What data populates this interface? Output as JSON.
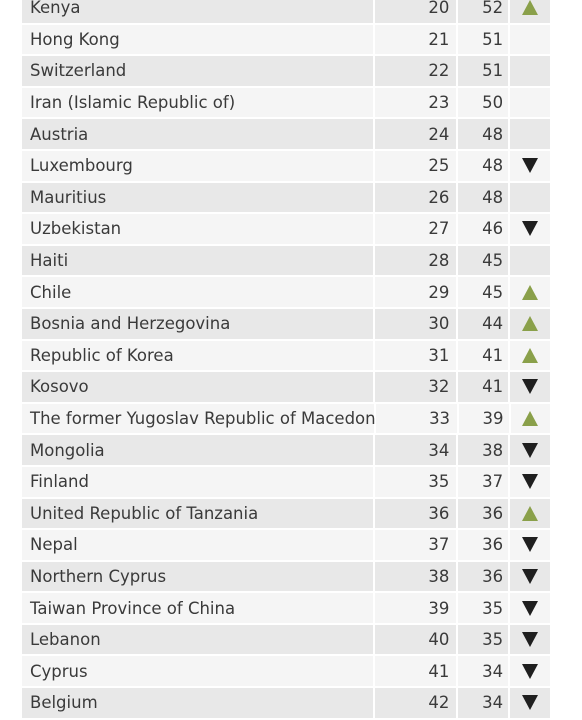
{
  "rows": [
    {
      "country": "Kenya",
      "rank": "20",
      "score": "52",
      "trend": "up"
    },
    {
      "country": "Hong Kong",
      "rank": "21",
      "score": "51",
      "trend": ""
    },
    {
      "country": "Switzerland",
      "rank": "22",
      "score": "51",
      "trend": ""
    },
    {
      "country": "Iran (Islamic Republic of)",
      "rank": "23",
      "score": "50",
      "trend": ""
    },
    {
      "country": "Austria",
      "rank": "24",
      "score": "48",
      "trend": ""
    },
    {
      "country": "Luxembourg",
      "rank": "25",
      "score": "48",
      "trend": "down"
    },
    {
      "country": "Mauritius",
      "rank": "26",
      "score": "48",
      "trend": ""
    },
    {
      "country": "Uzbekistan",
      "rank": "27",
      "score": "46",
      "trend": "down"
    },
    {
      "country": "Haiti",
      "rank": "28",
      "score": "45",
      "trend": ""
    },
    {
      "country": "Chile",
      "rank": "29",
      "score": "45",
      "trend": "up"
    },
    {
      "country": "Bosnia and Herzegovina",
      "rank": "30",
      "score": "44",
      "trend": "up"
    },
    {
      "country": "Republic of Korea",
      "rank": "31",
      "score": "41",
      "trend": "up"
    },
    {
      "country": "Kosovo",
      "rank": "32",
      "score": "41",
      "trend": "down"
    },
    {
      "country": "The former Yugoslav Republic of Macedonia",
      "rank": "33",
      "score": "39",
      "trend": "up"
    },
    {
      "country": "Mongolia",
      "rank": "34",
      "score": "38",
      "trend": "down"
    },
    {
      "country": "Finland",
      "rank": "35",
      "score": "37",
      "trend": "down"
    },
    {
      "country": "United Republic of Tanzania",
      "rank": "36",
      "score": "36",
      "trend": "up"
    },
    {
      "country": "Nepal",
      "rank": "37",
      "score": "36",
      "trend": "down"
    },
    {
      "country": "Northern Cyprus",
      "rank": "38",
      "score": "36",
      "trend": "down"
    },
    {
      "country": "Taiwan Province of China",
      "rank": "39",
      "score": "35",
      "trend": "down"
    },
    {
      "country": "Lebanon",
      "rank": "40",
      "score": "35",
      "trend": "down"
    },
    {
      "country": "Cyprus",
      "rank": "41",
      "score": "34",
      "trend": "down"
    },
    {
      "country": "Belgium",
      "rank": "42",
      "score": "34",
      "trend": "down"
    }
  ],
  "colors": {
    "trend_up": "#8aa04a",
    "trend_down": "#1f1f1f",
    "row_shade_a": "#e8e8e8",
    "row_shade_b": "#f5f5f5",
    "text": "#3a3a3a"
  }
}
